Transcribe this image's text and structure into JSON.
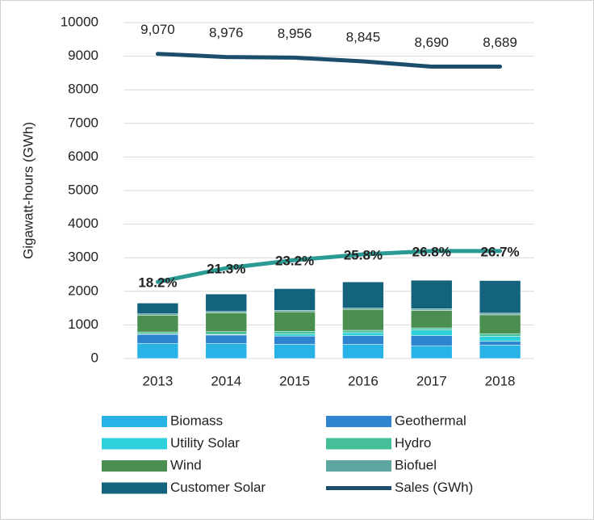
{
  "chart_data": {
    "type": "bar",
    "y_label": "Gigawatt-hours (GWh)",
    "categories": [
      "2013",
      "2014",
      "2015",
      "2016",
      "2017",
      "2018"
    ],
    "ylim": [
      0,
      10000
    ],
    "yticks": [
      0,
      1000,
      2000,
      3000,
      4000,
      5000,
      6000,
      7000,
      8000,
      9000,
      10000
    ],
    "grid": true,
    "series": [
      {
        "name": "Biomass",
        "type": "bar",
        "color": "#29b2e6",
        "values": [
          450,
          450,
          420,
          420,
          380,
          400
        ]
      },
      {
        "name": "Geothermal",
        "type": "bar",
        "color": "#2f84cf",
        "values": [
          270,
          250,
          250,
          260,
          300,
          110
        ]
      },
      {
        "name": "Utility Solar",
        "type": "bar",
        "color": "#2ed0da",
        "values": [
          10,
          20,
          60,
          90,
          170,
          150
        ]
      },
      {
        "name": "Hydro",
        "type": "bar",
        "color": "#45bf99",
        "values": [
          60,
          80,
          80,
          70,
          60,
          80
        ]
      },
      {
        "name": "Wind",
        "type": "bar",
        "color": "#4a8e50",
        "values": [
          500,
          560,
          580,
          620,
          520,
          560
        ]
      },
      {
        "name": "Biofuel",
        "type": "bar",
        "color": "#5ea7a1",
        "values": [
          40,
          40,
          40,
          40,
          50,
          50
        ]
      },
      {
        "name": "Customer Solar",
        "type": "bar",
        "color": "#14637d",
        "values": [
          320,
          520,
          650,
          780,
          850,
          970
        ]
      },
      {
        "name": "Sales (GWh)",
        "type": "line",
        "color": "#1d4d6d",
        "values": [
          9070,
          8976,
          8956,
          8845,
          8690,
          8689
        ],
        "value_labels": [
          "9,070",
          "8,976",
          "8,956",
          "8,845",
          "8,690",
          "8,689"
        ]
      },
      {
        "type": "line",
        "color": "#2a9a93",
        "values": [
          2280,
          2690,
          2930,
          3100,
          3200,
          3200
        ]
      }
    ],
    "annotations": [
      "18.2%",
      "21.3%",
      "23.2%",
      "25.8%",
      "26.8%",
      "26.7%"
    ]
  }
}
